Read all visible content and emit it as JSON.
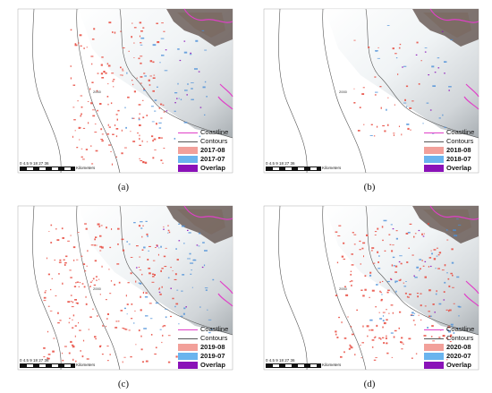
{
  "panels": [
    {
      "id": "a",
      "caption": "(a)",
      "contour_label": "2000",
      "legend": {
        "coastline": "Coastline",
        "contours": "Contours",
        "year_recent": "2017-08",
        "year_prior": "2017-07",
        "overlap": "Overlap"
      },
      "scale": {
        "ticks": "0 4.5 9     18      27      36",
        "unit": "Kilometers"
      }
    },
    {
      "id": "b",
      "caption": "(b)",
      "contour_label": "2000",
      "legend": {
        "coastline": "Coastline",
        "contours": "Contours",
        "year_recent": "2018-08",
        "year_prior": "2018-07",
        "overlap": "Overlap"
      },
      "scale": {
        "ticks": "0 4.5 9     18      27      36",
        "unit": "Kilometers"
      }
    },
    {
      "id": "c",
      "caption": "(c)",
      "contour_label": "2000",
      "legend": {
        "coastline": "Coastline",
        "contours": "Contours",
        "year_recent": "2019-08",
        "year_prior": "2019-07",
        "overlap": "Overlap"
      },
      "scale": {
        "ticks": "0 4.5 9     18      27      36",
        "unit": "Kilometers"
      }
    },
    {
      "id": "d",
      "caption": "(d)",
      "contour_label": "2000",
      "legend": {
        "coastline": "Coastline",
        "contours": "Contours",
        "year_recent": "2020-08",
        "year_prior": "2020-07",
        "overlap": "Overlap"
      },
      "scale": {
        "ticks": "0 4.5 9     18      27      36",
        "unit": "Kilometers"
      }
    }
  ],
  "colors": {
    "coastline": "#e040c8",
    "contours": "#555555",
    "year_recent": "#f2a09a",
    "year_prior": "#6ab4ee",
    "overlap": "#8a12b8",
    "red_lakes": "#e8483c",
    "blue_lakes": "#4a8fd8"
  },
  "graticule": {
    "top_left": "",
    "top_right": "",
    "left": ""
  }
}
